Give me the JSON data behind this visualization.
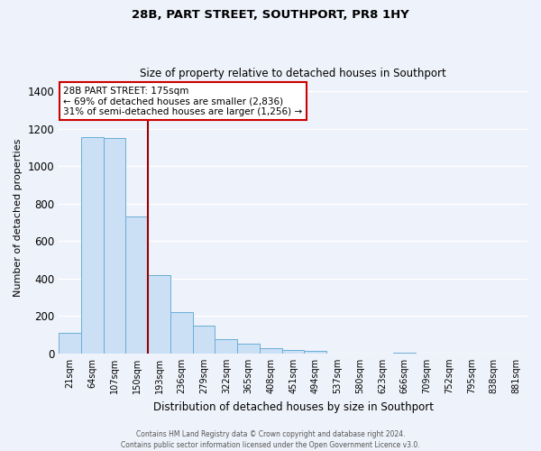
{
  "title": "28B, PART STREET, SOUTHPORT, PR8 1HY",
  "subtitle": "Size of property relative to detached houses in Southport",
  "xlabel": "Distribution of detached houses by size in Southport",
  "ylabel": "Number of detached properties",
  "bar_labels": [
    "21sqm",
    "64sqm",
    "107sqm",
    "150sqm",
    "193sqm",
    "236sqm",
    "279sqm",
    "322sqm",
    "365sqm",
    "408sqm",
    "451sqm",
    "494sqm",
    "537sqm",
    "580sqm",
    "623sqm",
    "666sqm",
    "709sqm",
    "752sqm",
    "795sqm",
    "838sqm",
    "881sqm"
  ],
  "bar_values": [
    110,
    1155,
    1150,
    730,
    420,
    220,
    150,
    75,
    50,
    30,
    20,
    15,
    0,
    0,
    0,
    5,
    0,
    0,
    0,
    0,
    0
  ],
  "bar_color": "#cce0f5",
  "bar_edge_color": "#6aaed6",
  "ylim": [
    0,
    1450
  ],
  "yticks": [
    0,
    200,
    400,
    600,
    800,
    1000,
    1200,
    1400
  ],
  "property_label": "28B PART STREET: 175sqm",
  "annotation_line1": "← 69% of detached houses are smaller (2,836)",
  "annotation_line2": "31% of semi-detached houses are larger (1,256) →",
  "annotation_box_color": "#ffffff",
  "annotation_box_edge_color": "#cc0000",
  "vertical_line_color": "#990000",
  "background_color": "#eef2fa",
  "grid_color": "#ffffff",
  "footer_line1": "Contains HM Land Registry data © Crown copyright and database right 2024.",
  "footer_line2": "Contains public sector information licensed under the Open Government Licence v3.0."
}
